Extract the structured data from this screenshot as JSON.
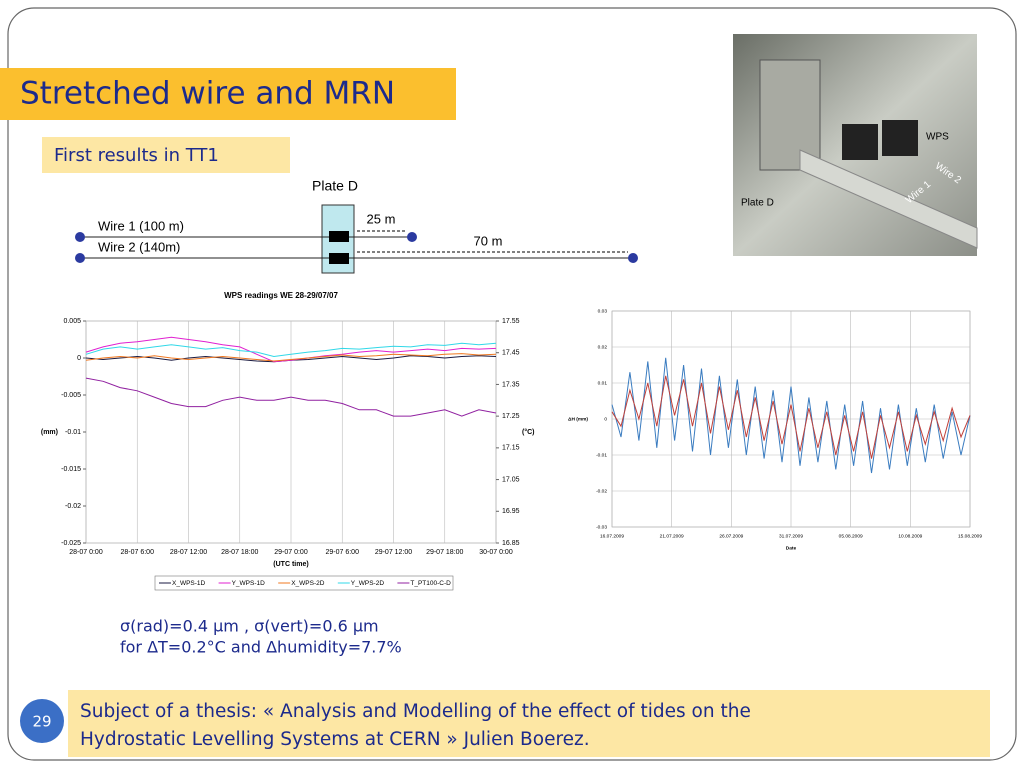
{
  "slide": {
    "title": "Stretched wire and MRN",
    "subtitle": "First results in TT1",
    "note_lines": [
      "σ(rad)=0.4 μm , σ(vert)=0.6 μm",
      "for ΔT=0.2°C and Δhumidity=7.7%"
    ],
    "footer_lines": [
      "Subject of a thesis: «  Analysis and Modelling of the effect of tides on the",
      "Hydrostatic Levelling Systems at CERN  » Julien Boerez."
    ],
    "page_number": "29"
  },
  "diagram": {
    "plate": "Plate D",
    "wire1": "Wire 1 (100 m)",
    "wire2": "Wire 2 (140m)",
    "dist1": "25 m",
    "dist2": "70 m"
  },
  "photo": {
    "labels": [
      "WPS",
      "Wire 2",
      "Wire 1",
      "Plate D"
    ]
  },
  "chart_data": [
    {
      "type": "line",
      "title": "WPS readings WE 28-29/07/07",
      "xlabel": "(UTC time)",
      "ylabel": "(mm)",
      "y2label": "(°C)",
      "grid": "x",
      "x": [
        0,
        2,
        4,
        6,
        8,
        10,
        12,
        14,
        16,
        18,
        20,
        22,
        24,
        26,
        28,
        30,
        32,
        34,
        36,
        38,
        40,
        42,
        44,
        46,
        48
      ],
      "xlim": [
        0,
        48
      ],
      "xticks": [
        {
          "value": 0,
          "label": "28-07 0:00"
        },
        {
          "value": 6,
          "label": "28-07 6:00"
        },
        {
          "value": 12,
          "label": "28-07 12:00"
        },
        {
          "value": 18,
          "label": "28-07 18:00"
        },
        {
          "value": 24,
          "label": "29-07 0:00"
        },
        {
          "value": 30,
          "label": "29-07 6:00"
        },
        {
          "value": 36,
          "label": "29-07 12:00"
        },
        {
          "value": 42,
          "label": "29-07 18:00"
        },
        {
          "value": 48,
          "label": "30-07 0:00"
        }
      ],
      "ylim": [
        -0.025,
        0.005
      ],
      "yticks": [
        0.005,
        0,
        -0.005,
        -0.01,
        -0.015,
        -0.02,
        -0.025
      ],
      "y2lim": [
        16.85,
        17.55
      ],
      "y2ticks": [
        17.55,
        17.45,
        17.35,
        17.25,
        17.15,
        17.05,
        16.95,
        16.85
      ],
      "series": [
        {
          "name": "X_WPS-1D",
          "color": "#1a1a40",
          "values": [
            0,
            -0.0002,
            0,
            0.0002,
            0,
            -0.0003,
            0,
            0.0002,
            0,
            -0.0002,
            -0.0004,
            -0.0005,
            -0.0003,
            -0.0002,
            0,
            0.0002,
            0,
            -0.0002,
            0,
            0.0003,
            0.0002,
            0,
            0.0002,
            0.0003,
            0.0002
          ]
        },
        {
          "name": "Y_WPS-1D",
          "color": "#e020d0",
          "values": [
            0.0008,
            0.0015,
            0.002,
            0.0022,
            0.0025,
            0.0028,
            0.0025,
            0.0022,
            0.0018,
            0.0015,
            0.0005,
            -0.0005,
            -0.0003,
            0,
            0.0003,
            0.0005,
            0.0008,
            0.001,
            0.0008,
            0.001,
            0.0012,
            0.001,
            0.0013,
            0.0012,
            0.0013
          ]
        },
        {
          "name": "X_WPS-2D",
          "color": "#f07820",
          "values": [
            -0.0003,
            0,
            0.0002,
            0,
            0.0003,
            0,
            -0.0002,
            0,
            0.0002,
            0,
            -0.0002,
            -0.0004,
            -0.0002,
            0,
            0.0002,
            0.0004,
            0.0002,
            0.0003,
            0.0005,
            0.0004,
            0.0003,
            0.0005,
            0.0006,
            0.0004,
            0.0005
          ]
        },
        {
          "name": "Y_WPS-2D",
          "color": "#30d8e8",
          "values": [
            0.0005,
            0.0012,
            0.0015,
            0.0012,
            0.0015,
            0.0018,
            0.0015,
            0.0012,
            0.0014,
            0.001,
            0.0008,
            0.0002,
            0.0005,
            0.0008,
            0.001,
            0.0013,
            0.0012,
            0.0014,
            0.0016,
            0.0015,
            0.0018,
            0.0017,
            0.002,
            0.0018,
            0.002
          ]
        },
        {
          "name": "T_PT100-C-D",
          "color": "#9020a0",
          "axis": "y2",
          "values": [
            17.37,
            17.36,
            17.34,
            17.33,
            17.31,
            17.29,
            17.28,
            17.28,
            17.3,
            17.31,
            17.3,
            17.3,
            17.31,
            17.3,
            17.3,
            17.29,
            17.27,
            17.27,
            17.25,
            17.25,
            17.26,
            17.27,
            17.25,
            17.27,
            17.26
          ]
        }
      ]
    },
    {
      "type": "line",
      "xlabel": "Date",
      "ylabel": "ΔH (mm)",
      "grid": "both",
      "x": [
        0,
        0.75,
        1.5,
        2.25,
        3,
        3.75,
        4.5,
        5.25,
        6,
        6.75,
        7.5,
        8.25,
        9,
        9.75,
        10.5,
        11.25,
        12,
        12.75,
        13.5,
        14.25,
        15,
        15.75,
        16.5,
        17.25,
        18,
        18.75,
        19.5,
        20.25,
        21,
        21.75,
        22.5,
        23.25,
        24,
        24.75,
        25.5,
        26.25,
        27,
        27.75,
        28.5,
        29.25,
        30
      ],
      "xlim": [
        0,
        30
      ],
      "xticks": [
        {
          "value": 0,
          "label": "16.07.2009"
        },
        {
          "value": 5,
          "label": "21.07.2009"
        },
        {
          "value": 10,
          "label": "26.07.2009"
        },
        {
          "value": 15,
          "label": "31.07.2009"
        },
        {
          "value": 20,
          "label": "05.08.2009"
        },
        {
          "value": 25,
          "label": "10.08.2009"
        },
        {
          "value": 30,
          "label": "15.08.2009"
        }
      ],
      "ylim": [
        -0.03,
        0.03
      ],
      "yticks": [
        0.03,
        0.02,
        0.01,
        0,
        -0.01,
        -0.02,
        -0.03
      ],
      "series": [
        {
          "color": "#3a7cc0",
          "values": [
            0.004,
            -0.005,
            0.013,
            -0.006,
            0.016,
            -0.008,
            0.017,
            -0.006,
            0.015,
            -0.009,
            0.014,
            -0.01,
            0.012,
            -0.008,
            0.011,
            -0.01,
            0.009,
            -0.011,
            0.008,
            -0.012,
            0.009,
            -0.013,
            0.006,
            -0.012,
            0.005,
            -0.014,
            0.004,
            -0.013,
            0.005,
            -0.015,
            0.003,
            -0.014,
            0.004,
            -0.013,
            0.003,
            -0.012,
            0.004,
            -0.011,
            0.002,
            -0.01,
            0.001
          ]
        },
        {
          "color": "#c0403a",
          "values": [
            0.002,
            -0.002,
            0.008,
            0,
            0.01,
            -0.002,
            0.012,
            0.001,
            0.011,
            -0.002,
            0.01,
            -0.004,
            0.009,
            -0.003,
            0.008,
            -0.005,
            0.006,
            -0.006,
            0.005,
            -0.007,
            0.004,
            -0.009,
            0.003,
            -0.008,
            0.002,
            -0.01,
            0.001,
            -0.009,
            0.002,
            -0.011,
            0.001,
            -0.008,
            0.002,
            -0.009,
            0.001,
            -0.007,
            0.002,
            -0.006,
            0.003,
            -0.005,
            0.001
          ]
        }
      ]
    }
  ]
}
